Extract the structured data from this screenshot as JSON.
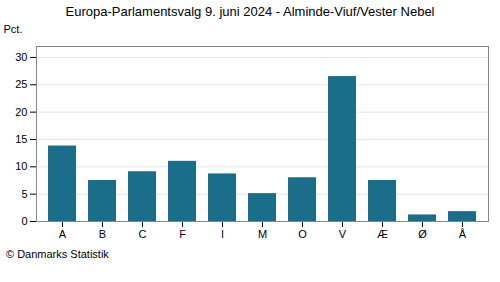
{
  "chart_data": {
    "type": "bar",
    "title": "Europa-Parlamentsvalg 9. juni 2024 - Alminde-Viuf/Vester Nebel",
    "categories": [
      "A",
      "B",
      "C",
      "F",
      "I",
      "M",
      "O",
      "V",
      "Æ",
      "Ø",
      "Å"
    ],
    "values": [
      13.8,
      7.5,
      9.1,
      11.0,
      8.7,
      5.1,
      8.0,
      26.5,
      7.5,
      1.2,
      1.8
    ],
    "color": "#1a6e8a",
    "ylabel": "Pct.",
    "ylim": [
      0,
      32
    ],
    "yticks": [
      0,
      5,
      10,
      15,
      20,
      25,
      30
    ],
    "grid": true,
    "footer": "© Danmarks Statistik"
  }
}
